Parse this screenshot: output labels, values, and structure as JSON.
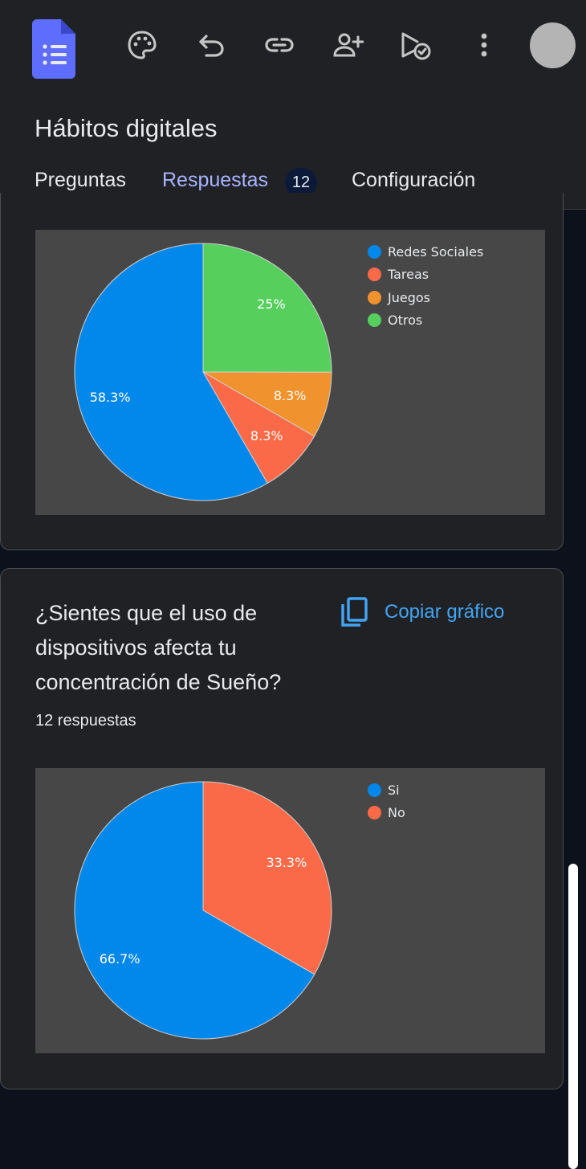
{
  "app": {
    "form_title": "Hábitos digitales",
    "icons": [
      "forms-logo-icon",
      "palette-icon",
      "undo-icon",
      "link-icon",
      "add-collaborator-icon",
      "send-icon",
      "more-vert-icon",
      "avatar"
    ]
  },
  "tabs": [
    {
      "label": "Preguntas",
      "active": false
    },
    {
      "label": "Respuestas",
      "active": true,
      "badge": "12"
    },
    {
      "label": "Configuración",
      "active": false
    }
  ],
  "colors": {
    "accent": "#a8b4ff",
    "link": "#42a5f5",
    "blue": "#0287ea",
    "red": "#fb6a48",
    "orange": "#f0922d",
    "green": "#56cf5d"
  },
  "question2": {
    "title": "¿Sientes que el uso de dispositivos afecta tu concentración de Sueño?",
    "responses": "12 respuestas",
    "copy_label": "Copiar gráfico"
  },
  "chart_data": [
    {
      "type": "pie",
      "categories": [
        "Redes Sociales",
        "Tareas",
        "Juegos",
        "Otros"
      ],
      "values": [
        58.3,
        8.3,
        8.3,
        25
      ],
      "labels": [
        "58.3%",
        "8.3%",
        "8.3%",
        "25%"
      ],
      "colors": [
        "#0287ea",
        "#fb6a48",
        "#f0922d",
        "#56cf5d"
      ],
      "legend": "right"
    },
    {
      "type": "pie",
      "categories": [
        "Si",
        "No"
      ],
      "values": [
        66.7,
        33.3
      ],
      "labels": [
        "66.7%",
        "33.3%"
      ],
      "colors": [
        "#0287ea",
        "#fb6a48"
      ],
      "legend": "right"
    }
  ]
}
